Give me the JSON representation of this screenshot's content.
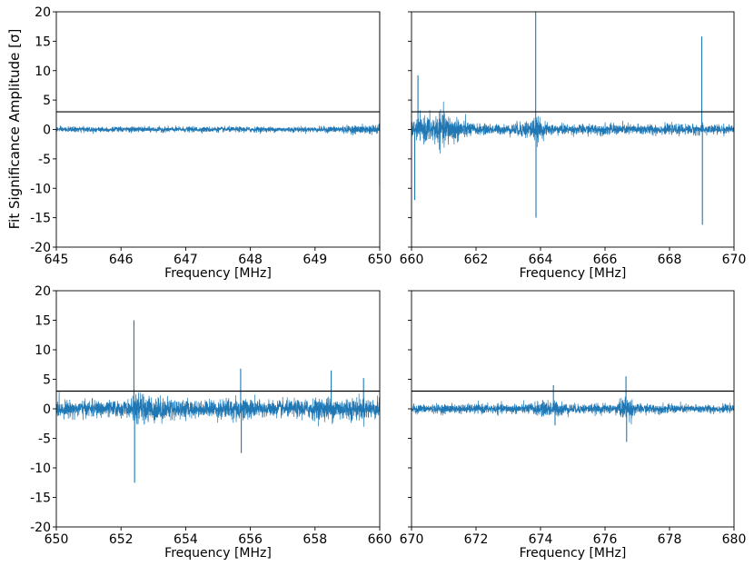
{
  "figure": {
    "ylabel": "Fit Significance Amplitude [σ]"
  },
  "chart_data": [
    {
      "type": "line",
      "panel": "top-left",
      "xlabel": "Frequency [MHz]",
      "ylabel": "Fit Significance Amplitude [σ]",
      "xlim": [
        645,
        650
      ],
      "ylim": [
        -20,
        20
      ],
      "xticks": [
        645,
        646,
        647,
        648,
        649,
        650
      ],
      "yticks": [
        -20,
        -15,
        -10,
        -5,
        0,
        5,
        10,
        15,
        20
      ],
      "show_ytick_labels": true,
      "threshold": 3,
      "series": [
        {
          "color": "#1f77b4",
          "noise": [
            [
              645,
              0.5
            ],
            [
              649,
              0.5
            ],
            [
              649.5,
              0.7
            ],
            [
              650,
              0.9
            ]
          ],
          "spikes": [
            [
              650,
              20
            ],
            [
              650,
              -9.5
            ]
          ]
        }
      ]
    },
    {
      "type": "line",
      "panel": "top-right",
      "xlabel": "Frequency [MHz]",
      "xlim": [
        660,
        670
      ],
      "ylim": [
        -20,
        20
      ],
      "xticks": [
        660,
        662,
        664,
        666,
        668,
        670
      ],
      "yticks": [
        -20,
        -15,
        -10,
        -5,
        0,
        5,
        10,
        15,
        20
      ],
      "show_ytick_labels": false,
      "threshold": 3,
      "series": [
        {
          "color": "#1f77b4",
          "noise": [
            [
              660,
              1.5
            ],
            [
              660.5,
              2.5
            ],
            [
              661,
              3.2
            ],
            [
              661.5,
              2.0
            ],
            [
              662,
              1.0
            ],
            [
              663,
              0.9
            ],
            [
              663.5,
              1.6
            ],
            [
              663.9,
              2.2
            ],
            [
              664.2,
              1.1
            ],
            [
              665,
              0.9
            ],
            [
              666,
              1.0
            ],
            [
              667,
              1.0
            ],
            [
              668,
              0.9
            ],
            [
              669,
              1.0
            ],
            [
              670,
              0.8
            ]
          ],
          "spikes": [
            [
              660.1,
              -12
            ],
            [
              660.2,
              9.2
            ],
            [
              663.85,
              20
            ],
            [
              663.86,
              -15
            ],
            [
              669.0,
              15.8
            ],
            [
              669.02,
              -16.2
            ]
          ]
        }
      ]
    },
    {
      "type": "line",
      "panel": "bottom-left",
      "xlabel": "Frequency [MHz]",
      "ylabel": "Fit Significance Amplitude [σ]",
      "xlim": [
        650,
        660
      ],
      "ylim": [
        -20,
        20
      ],
      "xticks": [
        650,
        652,
        654,
        656,
        658,
        660
      ],
      "yticks": [
        -20,
        -15,
        -10,
        -5,
        0,
        5,
        10,
        15,
        20
      ],
      "show_ytick_labels": true,
      "threshold": 3,
      "series": [
        {
          "color": "#1f77b4",
          "noise": [
            [
              650,
              1.5
            ],
            [
              652.3,
              1.5
            ],
            [
              652.5,
              2.8
            ],
            [
              653.5,
              2.0
            ],
            [
              654.5,
              1.4
            ],
            [
              655.5,
              2.2
            ],
            [
              656.5,
              1.5
            ],
            [
              657.5,
              1.6
            ],
            [
              658.5,
              2.2
            ],
            [
              659.5,
              2.0
            ],
            [
              660,
              1.8
            ]
          ],
          "spikes": [
            [
              652.4,
              15
            ],
            [
              652.42,
              -12.5
            ],
            [
              655.7,
              6.8
            ],
            [
              655.72,
              -7.5
            ],
            [
              658.5,
              6.5
            ],
            [
              659.5,
              5.2
            ]
          ]
        }
      ]
    },
    {
      "type": "line",
      "panel": "bottom-right",
      "xlabel": "Frequency [MHz]",
      "xlim": [
        670,
        680
      ],
      "ylim": [
        -20,
        20
      ],
      "xticks": [
        670,
        672,
        674,
        676,
        678,
        680
      ],
      "yticks": [
        -20,
        -15,
        -10,
        -5,
        0,
        5,
        10,
        15,
        20
      ],
      "show_ytick_labels": false,
      "threshold": 3,
      "series": [
        {
          "color": "#1f77b4",
          "noise": [
            [
              670,
              0.8
            ],
            [
              673.5,
              0.9
            ],
            [
              674.3,
              1.6
            ],
            [
              675,
              0.9
            ],
            [
              676.3,
              0.9
            ],
            [
              676.7,
              2.5
            ],
            [
              677,
              0.9
            ],
            [
              680,
              0.7
            ]
          ],
          "spikes": [
            [
              676.65,
              5.5
            ],
            [
              676.67,
              -5.6
            ],
            [
              674.4,
              4.0
            ],
            [
              674.45,
              -2.8
            ]
          ]
        }
      ]
    }
  ]
}
